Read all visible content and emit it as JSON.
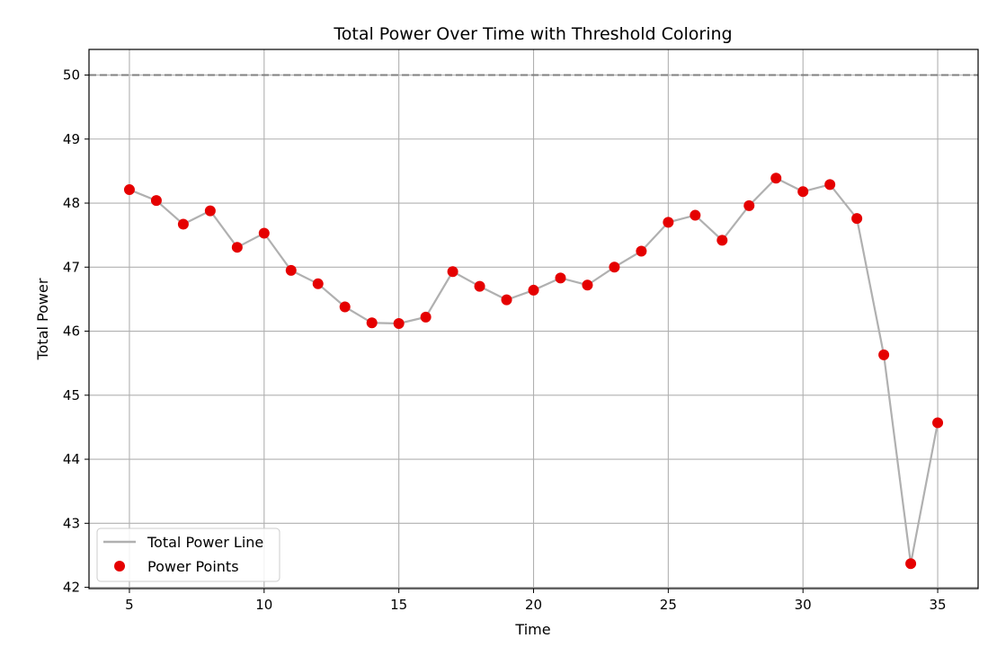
{
  "chart_data": {
    "type": "line",
    "title": "Total Power Over Time with Threshold Coloring",
    "xlabel": "Time",
    "ylabel": "Total Power",
    "xlim": [
      3.5,
      36.5
    ],
    "ylim": [
      41.98,
      50.4
    ],
    "xticks": [
      5,
      10,
      15,
      20,
      25,
      30,
      35
    ],
    "yticks": [
      42,
      43,
      44,
      45,
      46,
      47,
      48,
      49,
      50
    ],
    "grid": true,
    "threshold": 50,
    "legend_position": "lower-left",
    "colors": {
      "line": "#b0b0b0",
      "points": "#e50000",
      "threshold": "#808080",
      "grid": "#b0b0b0"
    },
    "series": [
      {
        "name": "Total Power Line",
        "kind": "line"
      },
      {
        "name": "Power Points",
        "kind": "scatter"
      }
    ],
    "x": [
      5,
      6,
      7,
      8,
      9,
      10,
      11,
      12,
      13,
      14,
      15,
      16,
      17,
      18,
      19,
      20,
      21,
      22,
      23,
      24,
      25,
      26,
      27,
      28,
      29,
      30,
      31,
      32,
      33,
      34,
      35
    ],
    "y": [
      48.21,
      48.04,
      47.67,
      47.88,
      47.31,
      47.53,
      46.95,
      46.74,
      46.38,
      46.13,
      46.12,
      46.22,
      46.93,
      46.7,
      46.49,
      46.64,
      46.83,
      46.72,
      47.0,
      47.25,
      47.7,
      47.81,
      47.42,
      47.96,
      48.39,
      48.18,
      48.29,
      47.76,
      45.63,
      42.37,
      44.57
    ]
  }
}
